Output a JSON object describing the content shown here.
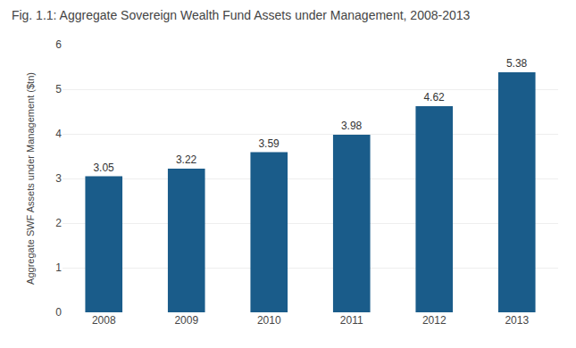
{
  "chart_data": {
    "type": "bar",
    "title": "Fig. 1.1: Aggregate Sovereign Wealth Fund Assets under Management, 2008-2013",
    "ylabel": "Aggregate SWF Assets under Management ($tn)",
    "categories": [
      "2008",
      "2009",
      "2010",
      "2011",
      "2012",
      "2013"
    ],
    "values": [
      3.05,
      3.22,
      3.59,
      3.98,
      4.62,
      5.38
    ],
    "color": "#1a5c8a",
    "ylim": [
      0,
      6
    ],
    "yticks": [
      0,
      1,
      2,
      3,
      4,
      5,
      6
    ],
    "grid": true,
    "data_labels": true
  }
}
